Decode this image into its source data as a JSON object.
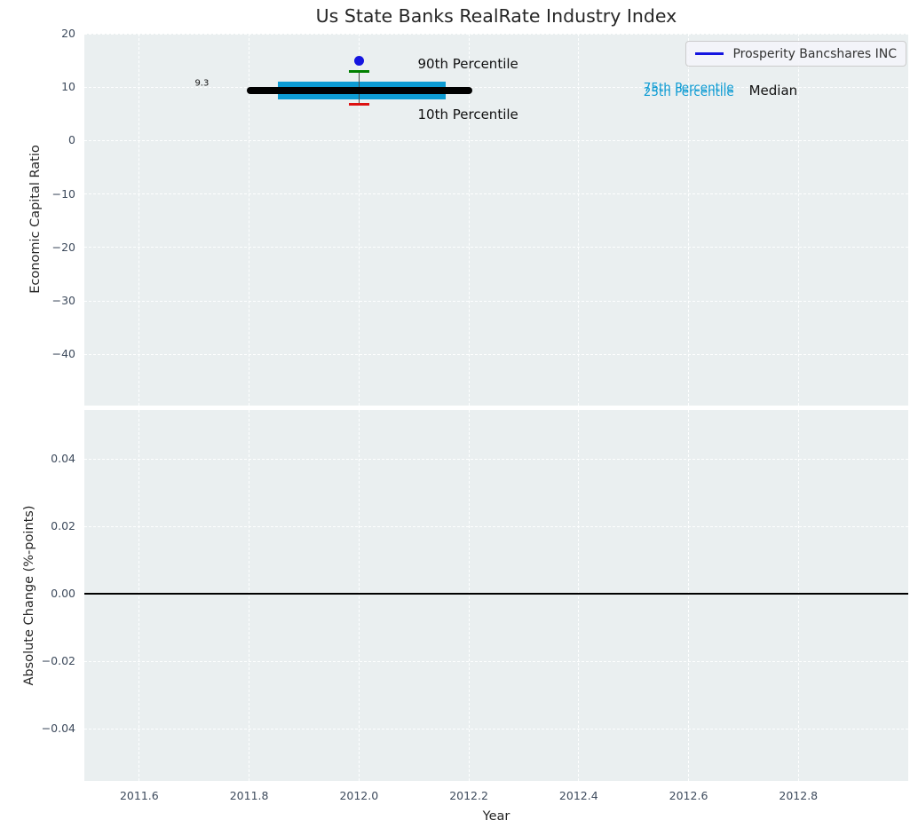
{
  "style": {
    "plot_bg": "#eaeff0",
    "grid_color": "#ffffff",
    "tick_color": "#3d4a5c",
    "label_color": "#262626",
    "company_color": "#1515e0",
    "box_color": "#0d9bd3",
    "median_color": "#000000",
    "p90_cap_color": "#008000",
    "p10_cap_color": "#dd1111",
    "whisker_color": "#4a4a4a"
  },
  "chart_data": [
    {
      "type": "box-timeseries",
      "title": "Us State Banks RealRate Industry Index",
      "ylabel": "Economic Capital Ratio",
      "xlim": [
        2011.5,
        2013.0
      ],
      "ylim": [
        -49.6,
        20
      ],
      "grid": true,
      "legend": {
        "label": "Prosperity Bancshares INC",
        "color": "#1515e0",
        "position": "upper right"
      },
      "yticks": [
        {
          "v": 20,
          "label": "20"
        },
        {
          "v": 10,
          "label": "10"
        },
        {
          "v": 0,
          "label": "0"
        },
        {
          "v": -10,
          "label": "−10"
        },
        {
          "v": -20,
          "label": "−20"
        },
        {
          "v": -30,
          "label": "−30"
        },
        {
          "v": -40,
          "label": "−40"
        }
      ],
      "xticks": [
        {
          "v": 2011.6,
          "label": "2011.6"
        },
        {
          "v": 2011.8,
          "label": "2011.8"
        },
        {
          "v": 2012.0,
          "label": "2012.0"
        },
        {
          "v": 2012.2,
          "label": "2012.2"
        },
        {
          "v": 2012.4,
          "label": "2012.4"
        },
        {
          "v": 2012.6,
          "label": "2012.6"
        },
        {
          "v": 2012.8,
          "label": "2012.8"
        }
      ],
      "series": [
        {
          "name": "Prosperity Bancshares INC",
          "marker": "circle",
          "color": "#1515e0",
          "x": [
            2012.0
          ],
          "y": [
            15.0
          ]
        }
      ],
      "industry_stats": [
        {
          "x": 2012.0,
          "p90": 13.0,
          "p75": 11.1,
          "median": 9.3,
          "p25": 7.7,
          "p10": 6.8,
          "median_label": "9.3",
          "median_span": [
            2011.795,
            2012.207
          ],
          "box_span": [
            2011.853,
            2012.158
          ],
          "cap_halfwidth_years": 0.019
        }
      ],
      "annotations": [
        {
          "text": "90th Percentile",
          "x": 2012.107,
          "y": 14.4,
          "color": "#111111",
          "size": 15,
          "align": "left"
        },
        {
          "text": "10th Percentile",
          "x": 2012.107,
          "y": 4.9,
          "color": "#111111",
          "size": 15,
          "align": "left"
        },
        {
          "text": "75th Percentile",
          "x": 2012.518,
          "y": 9.8,
          "color": "#0d9bd3",
          "size": 13.5,
          "align": "left"
        },
        {
          "text": "25th Percentile",
          "x": 2012.518,
          "y": 9.0,
          "color": "#0d9bd3",
          "size": 13.5,
          "align": "left"
        },
        {
          "text": "Median",
          "x": 2012.71,
          "y": 9.3,
          "color": "#111111",
          "size": 15,
          "align": "left"
        },
        {
          "text": "9.3",
          "x": 2011.714,
          "y": 10.7,
          "color": "#111111",
          "size": 10,
          "align": "center"
        }
      ]
    },
    {
      "type": "line",
      "ylabel": "Absolute Change (%-points)",
      "xlabel": "Year",
      "xlim": [
        2011.5,
        2013.0
      ],
      "ylim": [
        -0.0555,
        0.0545
      ],
      "grid": true,
      "hline": {
        "y": 0.0,
        "color": "#000000"
      },
      "yticks": [
        {
          "v": 0.04,
          "label": "0.04"
        },
        {
          "v": 0.02,
          "label": "0.02"
        },
        {
          "v": 0.0,
          "label": "0.00"
        },
        {
          "v": -0.02,
          "label": "−0.02"
        },
        {
          "v": -0.04,
          "label": "−0.04"
        }
      ],
      "xticks": [
        {
          "v": 2011.6,
          "label": "2011.6"
        },
        {
          "v": 2011.8,
          "label": "2011.8"
        },
        {
          "v": 2012.0,
          "label": "2012.0"
        },
        {
          "v": 2012.2,
          "label": "2012.2"
        },
        {
          "v": 2012.4,
          "label": "2012.4"
        },
        {
          "v": 2012.6,
          "label": "2012.6"
        },
        {
          "v": 2012.8,
          "label": "2012.8"
        }
      ]
    }
  ]
}
